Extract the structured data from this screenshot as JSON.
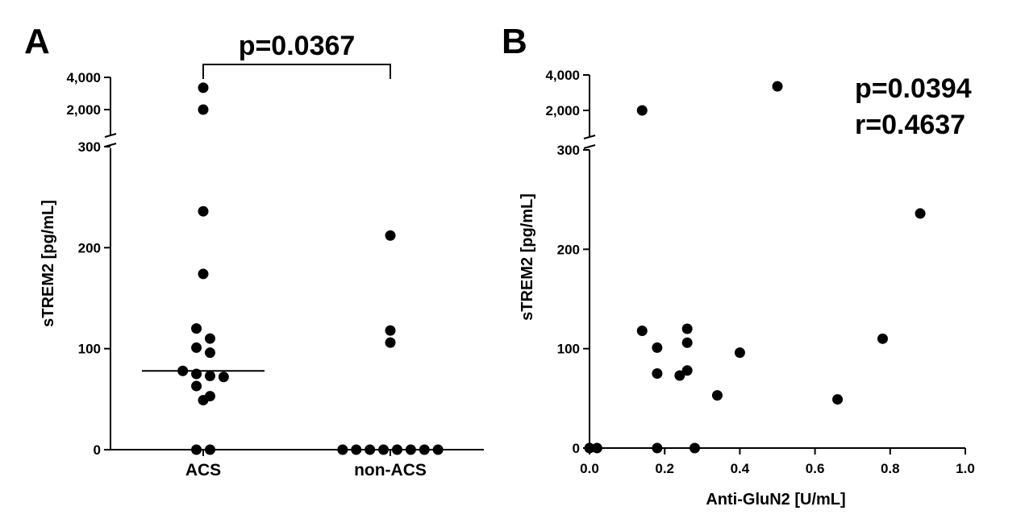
{
  "chart_data": [
    {
      "panel": "A",
      "type": "scatter",
      "ylabel": "sTREM2 [pg/mL]",
      "xlabel": "",
      "categories": [
        "ACS",
        "non-ACS"
      ],
      "y_break": {
        "lower_range": [
          0,
          300
        ],
        "upper_range": [
          1000,
          4000
        ]
      },
      "yticks_lower": [
        0,
        100,
        200,
        300
      ],
      "yticks_lower_labels": [
        "0",
        "100",
        "200",
        "300"
      ],
      "yticks_upper": [
        2000,
        4000
      ],
      "yticks_upper_labels": [
        "2,000",
        "4,000"
      ],
      "series": [
        {
          "category": "ACS",
          "values": [
            3200,
            2000,
            236,
            174,
            120,
            110,
            101,
            96,
            78,
            75,
            73,
            72,
            63,
            53,
            49,
            0,
            0
          ],
          "median": 78
        },
        {
          "category": "non-ACS",
          "values": [
            212,
            118,
            106,
            0,
            0,
            0,
            0,
            0,
            0,
            0,
            0
          ]
        }
      ],
      "annotation": "p=0.0367"
    },
    {
      "panel": "B",
      "type": "scatter",
      "xlabel": "Anti-GluN2 [U/mL]",
      "ylabel": "sTREM2 [pg/mL]",
      "xlim": [
        0,
        1.0
      ],
      "xticks": [
        0,
        0.2,
        0.4,
        0.6,
        0.8,
        1.0
      ],
      "xtick_labels": [
        "0.0",
        "0.2",
        "0.4",
        "0.6",
        "0.8",
        "1.0"
      ],
      "y_break": {
        "lower_range": [
          0,
          300
        ],
        "upper_range": [
          1000,
          4000
        ]
      },
      "yticks_lower": [
        0,
        100,
        200,
        300
      ],
      "yticks_lower_labels": [
        "0",
        "100",
        "200",
        "300"
      ],
      "yticks_upper": [
        2000,
        4000
      ],
      "yticks_upper_labels": [
        "2,000",
        "4,000"
      ],
      "points": [
        {
          "x": 0.0,
          "y": 0
        },
        {
          "x": 0.02,
          "y": 0
        },
        {
          "x": 0.14,
          "y": 2000
        },
        {
          "x": 0.5,
          "y": 3200
        },
        {
          "x": 0.14,
          "y": 118
        },
        {
          "x": 0.18,
          "y": 101
        },
        {
          "x": 0.18,
          "y": 75
        },
        {
          "x": 0.18,
          "y": 0
        },
        {
          "x": 0.24,
          "y": 73
        },
        {
          "x": 0.26,
          "y": 120
        },
        {
          "x": 0.26,
          "y": 106
        },
        {
          "x": 0.26,
          "y": 78
        },
        {
          "x": 0.28,
          "y": 0
        },
        {
          "x": 0.34,
          "y": 53
        },
        {
          "x": 0.4,
          "y": 96
        },
        {
          "x": 0.66,
          "y": 49
        },
        {
          "x": 0.78,
          "y": 110
        },
        {
          "x": 0.88,
          "y": 236
        }
      ],
      "annotations": [
        "p=0.0394",
        "r=0.4637"
      ]
    }
  ]
}
